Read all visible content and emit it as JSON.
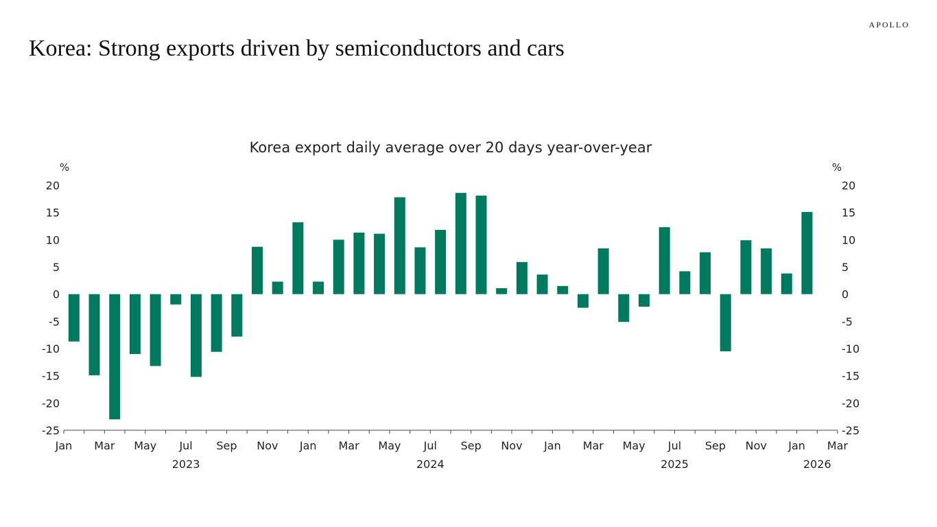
{
  "page": {
    "title": "Korea: Strong exports driven by semiconductors and cars",
    "logo": "APOLLO"
  },
  "chart_data": {
    "type": "bar",
    "title": "Korea export daily average over 20 days year-over-year",
    "ylabel_left": "%",
    "ylabel_right": "%",
    "ylim": [
      -25,
      20
    ],
    "yticks": [
      20,
      15,
      10,
      5,
      0,
      -5,
      -10,
      -15,
      -20,
      -25
    ],
    "grid": false,
    "bar_color": "#007A5E",
    "x_start": "2023-01",
    "x_end": "2026-03",
    "xtick_labels": [
      "Jan",
      "Mar",
      "May",
      "Jul",
      "Sep",
      "Nov",
      "Jan",
      "Mar",
      "May",
      "Jul",
      "Sep",
      "Nov",
      "Jan",
      "Mar",
      "May",
      "Jul",
      "Sep",
      "Nov",
      "Jan",
      "Mar"
    ],
    "year_labels": [
      "2023",
      "2024",
      "2025",
      "2026"
    ],
    "categories": [
      "2023-01",
      "2023-02",
      "2023-03",
      "2023-04",
      "2023-05",
      "2023-06",
      "2023-07",
      "2023-08",
      "2023-09",
      "2023-10",
      "2023-11",
      "2023-12",
      "2024-01",
      "2024-02",
      "2024-03",
      "2024-04",
      "2024-05",
      "2024-06",
      "2024-07",
      "2024-08",
      "2024-09",
      "2024-10",
      "2024-11",
      "2024-12",
      "2025-01",
      "2025-02",
      "2025-03",
      "2025-04",
      "2025-05",
      "2025-06",
      "2025-07",
      "2025-08",
      "2025-09",
      "2025-10",
      "2025-11",
      "2025-12",
      "2026-01"
    ],
    "values": [
      -8.7,
      -14.9,
      -23.0,
      -11.0,
      -13.2,
      -1.9,
      -15.2,
      -10.6,
      -7.8,
      8.7,
      2.3,
      13.2,
      2.3,
      10.0,
      11.3,
      11.1,
      17.8,
      8.6,
      11.8,
      18.6,
      18.1,
      1.1,
      5.9,
      3.6,
      1.5,
      -2.5,
      8.4,
      -5.1,
      -2.3,
      12.3,
      4.2,
      7.7,
      -10.5,
      9.9,
      8.4,
      3.8,
      15.1
    ]
  }
}
